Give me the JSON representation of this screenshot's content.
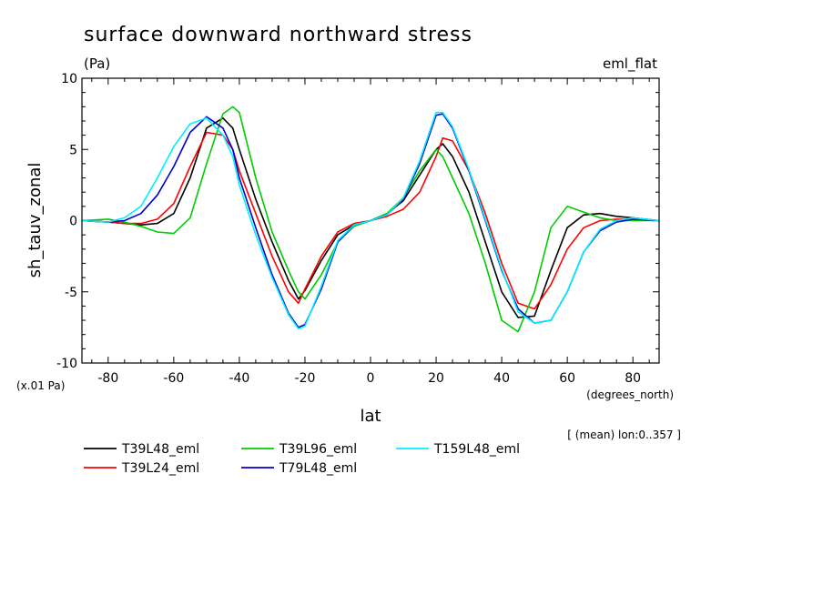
{
  "chart_data": {
    "type": "line",
    "title": "surface downward northward stress",
    "subtitle": "(Pa)",
    "experiment_label": "eml_flat",
    "xlabel": "lat",
    "x_units": "(degrees_north)",
    "ylabel": "sh_tauv_zonal",
    "y_scale_note": "(x.01 Pa)",
    "averaging_note": "[ (mean) lon:0..357 ]",
    "xlim": [
      -88,
      88
    ],
    "ylim": [
      -10,
      10
    ],
    "x_ticks": [
      -80,
      -60,
      -40,
      -20,
      0,
      20,
      40,
      60,
      80
    ],
    "x_tick_labels": [
      "-80",
      "-60",
      "-40",
      "-20",
      "0",
      "20",
      "40",
      "60",
      "80"
    ],
    "y_ticks": [
      -10,
      -5,
      0,
      5,
      10
    ],
    "y_tick_labels": [
      "-10",
      "-5",
      "0",
      "5",
      "10"
    ],
    "legend_placement": "bottom",
    "x": [
      -88,
      -80,
      -75,
      -70,
      -65,
      -60,
      -55,
      -50,
      -45,
      -42,
      -40,
      -35,
      -30,
      -25,
      -22,
      -20,
      -15,
      -10,
      -5,
      0,
      5,
      10,
      15,
      20,
      22,
      25,
      30,
      35,
      40,
      45,
      50,
      55,
      60,
      65,
      70,
      75,
      80,
      88
    ],
    "series": [
      {
        "name": "T39L48_eml",
        "color": "#000000",
        "values": [
          0,
          -0.1,
          -0.2,
          -0.3,
          -0.2,
          0.5,
          3.0,
          6.5,
          7.2,
          6.5,
          5.0,
          1.5,
          -1.5,
          -4.2,
          -5.5,
          -4.9,
          -2.8,
          -1.0,
          -0.3,
          0,
          0.5,
          1.4,
          3.2,
          5.0,
          5.4,
          4.5,
          2.0,
          -1.5,
          -5.0,
          -6.8,
          -6.7,
          -3.5,
          -0.5,
          0.4,
          0.5,
          0.3,
          0.2,
          0
        ]
      },
      {
        "name": "T39L24_eml",
        "color": "#ff0000",
        "values": [
          0,
          -0.1,
          -0.2,
          -0.2,
          0.1,
          1.2,
          3.8,
          6.2,
          6.0,
          5.0,
          3.5,
          0.5,
          -2.5,
          -5.0,
          -5.8,
          -4.8,
          -2.5,
          -0.8,
          -0.2,
          0,
          0.3,
          0.8,
          2.0,
          4.5,
          5.8,
          5.6,
          3.5,
          0.5,
          -3.0,
          -5.8,
          -6.2,
          -4.5,
          -2.0,
          -0.5,
          0,
          0.1,
          0.1,
          0
        ]
      },
      {
        "name": "T39L96_eml",
        "color": "#00cc00",
        "values": [
          0,
          0.1,
          -0.1,
          -0.4,
          -0.8,
          -0.9,
          0.2,
          4.0,
          7.5,
          8.0,
          7.6,
          3.0,
          -0.8,
          -3.5,
          -5.0,
          -5.5,
          -3.8,
          -1.5,
          -0.4,
          0,
          0.5,
          1.6,
          3.5,
          5.0,
          4.5,
          3.0,
          0.5,
          -3.0,
          -7.0,
          -7.8,
          -5.0,
          -0.5,
          1.0,
          0.6,
          0.2,
          0,
          0,
          0
        ]
      },
      {
        "name": "T79L48_eml",
        "color": "#0000cc",
        "values": [
          0,
          -0.1,
          0,
          0.5,
          1.8,
          3.8,
          6.2,
          7.3,
          6.5,
          5.0,
          3.0,
          -0.5,
          -3.8,
          -6.5,
          -7.5,
          -7.3,
          -4.8,
          -1.5,
          -0.3,
          0,
          0.4,
          1.5,
          4.0,
          7.4,
          7.5,
          6.5,
          3.5,
          0,
          -3.5,
          -6.2,
          -7.2,
          -7.0,
          -5.0,
          -2.2,
          -0.7,
          -0.1,
          0.1,
          0
        ]
      },
      {
        "name": "T159L48_eml",
        "color": "#00eeff",
        "values": [
          0,
          -0.1,
          0.2,
          1.0,
          3.0,
          5.2,
          6.8,
          7.2,
          6.0,
          4.5,
          2.5,
          -1.0,
          -4.0,
          -6.6,
          -7.6,
          -7.4,
          -4.6,
          -1.4,
          -0.3,
          0,
          0.4,
          1.6,
          4.2,
          7.6,
          7.6,
          6.6,
          3.6,
          0.1,
          -3.4,
          -6.4,
          -7.2,
          -7.0,
          -5.0,
          -2.2,
          -0.6,
          0,
          0.2,
          0
        ]
      }
    ]
  },
  "legend": [
    {
      "label": "T39L48_eml",
      "color": "#000000"
    },
    {
      "label": "T39L24_eml",
      "color": "#ff0000"
    },
    {
      "label": "T39L96_eml",
      "color": "#00cc00"
    },
    {
      "label": "T79L48_eml",
      "color": "#0000cc"
    },
    {
      "label": "T159L48_eml",
      "color": "#00eeff"
    }
  ]
}
